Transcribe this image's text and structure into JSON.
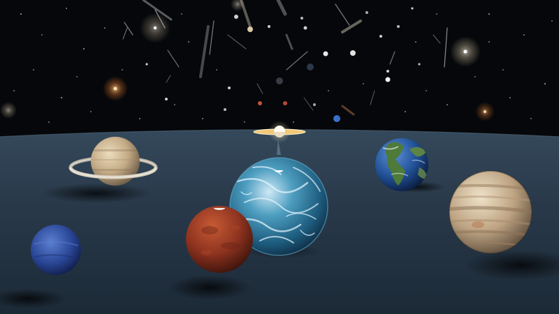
{
  "scene": {
    "planets": [
      {
        "name": "saturn",
        "color": "#cdb898"
      },
      {
        "name": "uranus",
        "color": "#bfe0ee"
      },
      {
        "name": "earth",
        "color": "#2a5fa8"
      },
      {
        "name": "neptune",
        "color": "#2f4f9c"
      },
      {
        "name": "mars",
        "color": "#9a3a22"
      },
      {
        "name": "jupiter",
        "color": "#c9b393"
      },
      {
        "name": "small-ringed-planet",
        "color": "#f4f0e6"
      }
    ],
    "floor_color": "#26394a",
    "sky_color": "#05070a"
  }
}
